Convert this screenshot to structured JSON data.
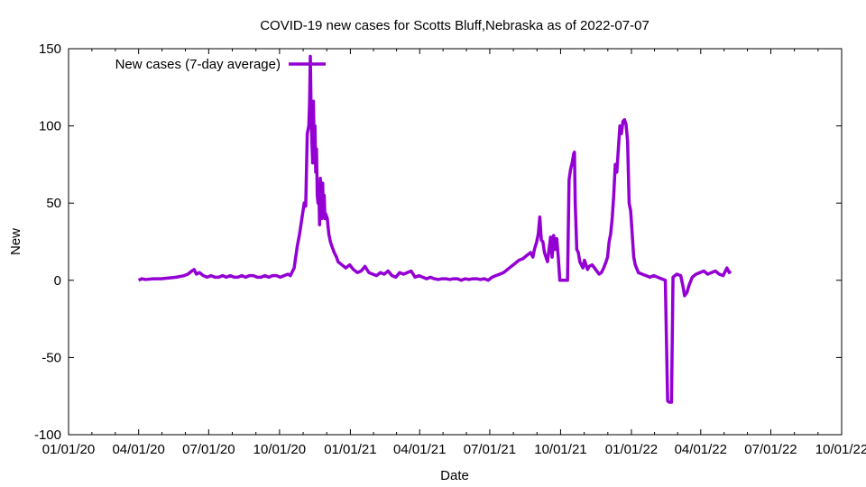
{
  "chart_data": {
    "type": "line",
    "title": "COVID-19 new cases for Scotts Bluff,Nebraska as of 2022-07-07",
    "xlabel": "Date",
    "ylabel": "New",
    "xlim_days": [
      0,
      1004
    ],
    "ylim": [
      -100,
      150
    ],
    "x_ticks": [
      {
        "label": "01/01/20",
        "day": 0
      },
      {
        "label": "04/01/20",
        "day": 91
      },
      {
        "label": "07/01/20",
        "day": 182
      },
      {
        "label": "10/01/20",
        "day": 274
      },
      {
        "label": "01/01/21",
        "day": 366
      },
      {
        "label": "04/01/21",
        "day": 456
      },
      {
        "label": "07/01/21",
        "day": 547
      },
      {
        "label": "10/01/21",
        "day": 639
      },
      {
        "label": "01/01/22",
        "day": 731
      },
      {
        "label": "04/01/22",
        "day": 821
      },
      {
        "label": "07/01/22",
        "day": 912
      },
      {
        "label": "10/01/22",
        "day": 1004
      }
    ],
    "y_ticks": [
      -100,
      -50,
      0,
      50,
      100,
      150
    ],
    "legend": "top-left",
    "grid": false,
    "series": [
      {
        "name": "New cases (7-day average)",
        "color": "#9400d3",
        "points": [
          [
            91,
            0
          ],
          [
            95,
            1
          ],
          [
            100,
            0.5
          ],
          [
            110,
            1
          ],
          [
            120,
            1
          ],
          [
            130,
            1.5
          ],
          [
            140,
            2
          ],
          [
            150,
            3
          ],
          [
            155,
            4
          ],
          [
            160,
            6
          ],
          [
            163,
            7
          ],
          [
            166,
            4
          ],
          [
            170,
            5
          ],
          [
            175,
            3
          ],
          [
            180,
            2
          ],
          [
            185,
            3
          ],
          [
            190,
            2
          ],
          [
            195,
            2
          ],
          [
            200,
            3
          ],
          [
            205,
            2
          ],
          [
            210,
            3
          ],
          [
            215,
            2
          ],
          [
            220,
            2
          ],
          [
            225,
            3
          ],
          [
            230,
            2
          ],
          [
            235,
            3
          ],
          [
            240,
            3
          ],
          [
            245,
            2
          ],
          [
            250,
            2
          ],
          [
            255,
            3
          ],
          [
            260,
            2
          ],
          [
            265,
            3
          ],
          [
            270,
            3
          ],
          [
            275,
            2
          ],
          [
            280,
            3
          ],
          [
            285,
            4
          ],
          [
            288,
            3
          ],
          [
            290,
            5
          ],
          [
            293,
            8
          ],
          [
            295,
            15
          ],
          [
            297,
            22
          ],
          [
            300,
            30
          ],
          [
            303,
            40
          ],
          [
            306,
            50
          ],
          [
            308,
            48
          ],
          [
            310,
            95
          ],
          [
            312,
            100
          ],
          [
            313,
            115
          ],
          [
            314,
            145
          ],
          [
            315,
            110
          ],
          [
            316,
            90
          ],
          [
            317,
            76
          ],
          [
            318,
            116
          ],
          [
            319,
            85
          ],
          [
            320,
            100
          ],
          [
            321,
            70
          ],
          [
            322,
            85
          ],
          [
            323,
            55
          ],
          [
            324,
            50
          ],
          [
            325,
            60
          ],
          [
            326,
            36
          ],
          [
            327,
            66
          ],
          [
            328,
            55
          ],
          [
            329,
            40
          ],
          [
            330,
            63
          ],
          [
            331,
            42
          ],
          [
            332,
            55
          ],
          [
            333,
            40
          ],
          [
            334,
            43
          ],
          [
            336,
            40
          ],
          [
            338,
            30
          ],
          [
            340,
            25
          ],
          [
            342,
            22
          ],
          [
            345,
            18
          ],
          [
            348,
            15
          ],
          [
            350,
            12
          ],
          [
            355,
            10
          ],
          [
            360,
            8
          ],
          [
            365,
            10
          ],
          [
            370,
            7
          ],
          [
            375,
            5
          ],
          [
            380,
            6
          ],
          [
            385,
            9
          ],
          [
            390,
            5
          ],
          [
            395,
            4
          ],
          [
            400,
            3
          ],
          [
            405,
            5
          ],
          [
            410,
            4
          ],
          [
            415,
            6
          ],
          [
            420,
            3
          ],
          [
            425,
            2
          ],
          [
            430,
            5
          ],
          [
            435,
            4
          ],
          [
            440,
            5
          ],
          [
            445,
            6
          ],
          [
            450,
            2
          ],
          [
            455,
            3
          ],
          [
            460,
            2
          ],
          [
            465,
            1
          ],
          [
            470,
            2
          ],
          [
            475,
            1
          ],
          [
            480,
            0.5
          ],
          [
            485,
            1
          ],
          [
            490,
            1
          ],
          [
            495,
            0.5
          ],
          [
            500,
            1
          ],
          [
            505,
            1
          ],
          [
            510,
            0
          ],
          [
            515,
            1
          ],
          [
            520,
            0.5
          ],
          [
            525,
            1
          ],
          [
            530,
            1
          ],
          [
            535,
            0.5
          ],
          [
            540,
            1
          ],
          [
            545,
            0
          ],
          [
            550,
            2
          ],
          [
            555,
            3
          ],
          [
            560,
            4
          ],
          [
            565,
            5
          ],
          [
            570,
            7
          ],
          [
            575,
            9
          ],
          [
            580,
            11
          ],
          [
            585,
            13
          ],
          [
            590,
            14
          ],
          [
            595,
            16
          ],
          [
            600,
            18
          ],
          [
            603,
            15
          ],
          [
            605,
            20
          ],
          [
            608,
            25
          ],
          [
            610,
            30
          ],
          [
            612,
            41
          ],
          [
            614,
            26
          ],
          [
            616,
            25
          ],
          [
            618,
            18
          ],
          [
            620,
            15
          ],
          [
            622,
            12
          ],
          [
            624,
            20
          ],
          [
            626,
            28
          ],
          [
            628,
            15
          ],
          [
            630,
            29
          ],
          [
            632,
            20
          ],
          [
            634,
            27
          ],
          [
            636,
            15
          ],
          [
            638,
            0
          ],
          [
            640,
            0
          ],
          [
            642,
            0
          ],
          [
            645,
            0
          ],
          [
            648,
            0
          ],
          [
            650,
            65
          ],
          [
            652,
            72
          ],
          [
            654,
            76
          ],
          [
            656,
            82
          ],
          [
            657,
            83
          ],
          [
            658,
            50
          ],
          [
            660,
            20
          ],
          [
            662,
            18
          ],
          [
            664,
            12
          ],
          [
            666,
            10
          ],
          [
            668,
            8
          ],
          [
            670,
            13
          ],
          [
            672,
            10
          ],
          [
            674,
            7
          ],
          [
            676,
            9
          ],
          [
            680,
            10
          ],
          [
            683,
            8
          ],
          [
            686,
            6
          ],
          [
            689,
            4
          ],
          [
            692,
            5
          ],
          [
            695,
            8
          ],
          [
            698,
            12
          ],
          [
            700,
            15
          ],
          [
            702,
            25
          ],
          [
            704,
            30
          ],
          [
            706,
            40
          ],
          [
            708,
            55
          ],
          [
            710,
            75
          ],
          [
            712,
            70
          ],
          [
            714,
            85
          ],
          [
            716,
            100
          ],
          [
            718,
            95
          ],
          [
            720,
            103
          ],
          [
            722,
            104
          ],
          [
            724,
            101
          ],
          [
            726,
            90
          ],
          [
            728,
            50
          ],
          [
            730,
            45
          ],
          [
            732,
            30
          ],
          [
            734,
            15
          ],
          [
            736,
            10
          ],
          [
            740,
            5
          ],
          [
            745,
            4
          ],
          [
            750,
            3
          ],
          [
            755,
            2
          ],
          [
            760,
            3
          ],
          [
            765,
            2
          ],
          [
            770,
            1
          ],
          [
            775,
            0
          ],
          [
            778,
            -78
          ],
          [
            780,
            -79
          ],
          [
            783,
            -79
          ],
          [
            785,
            2
          ],
          [
            790,
            4
          ],
          [
            795,
            3
          ],
          [
            798,
            -4
          ],
          [
            800,
            -10
          ],
          [
            803,
            -8
          ],
          [
            806,
            -3
          ],
          [
            810,
            2
          ],
          [
            815,
            4
          ],
          [
            820,
            5
          ],
          [
            825,
            6
          ],
          [
            830,
            4
          ],
          [
            835,
            5
          ],
          [
            840,
            6
          ],
          [
            845,
            4
          ],
          [
            850,
            3
          ],
          [
            855,
            8
          ],
          [
            858,
            5
          ],
          [
            860,
            6
          ]
        ]
      }
    ]
  }
}
